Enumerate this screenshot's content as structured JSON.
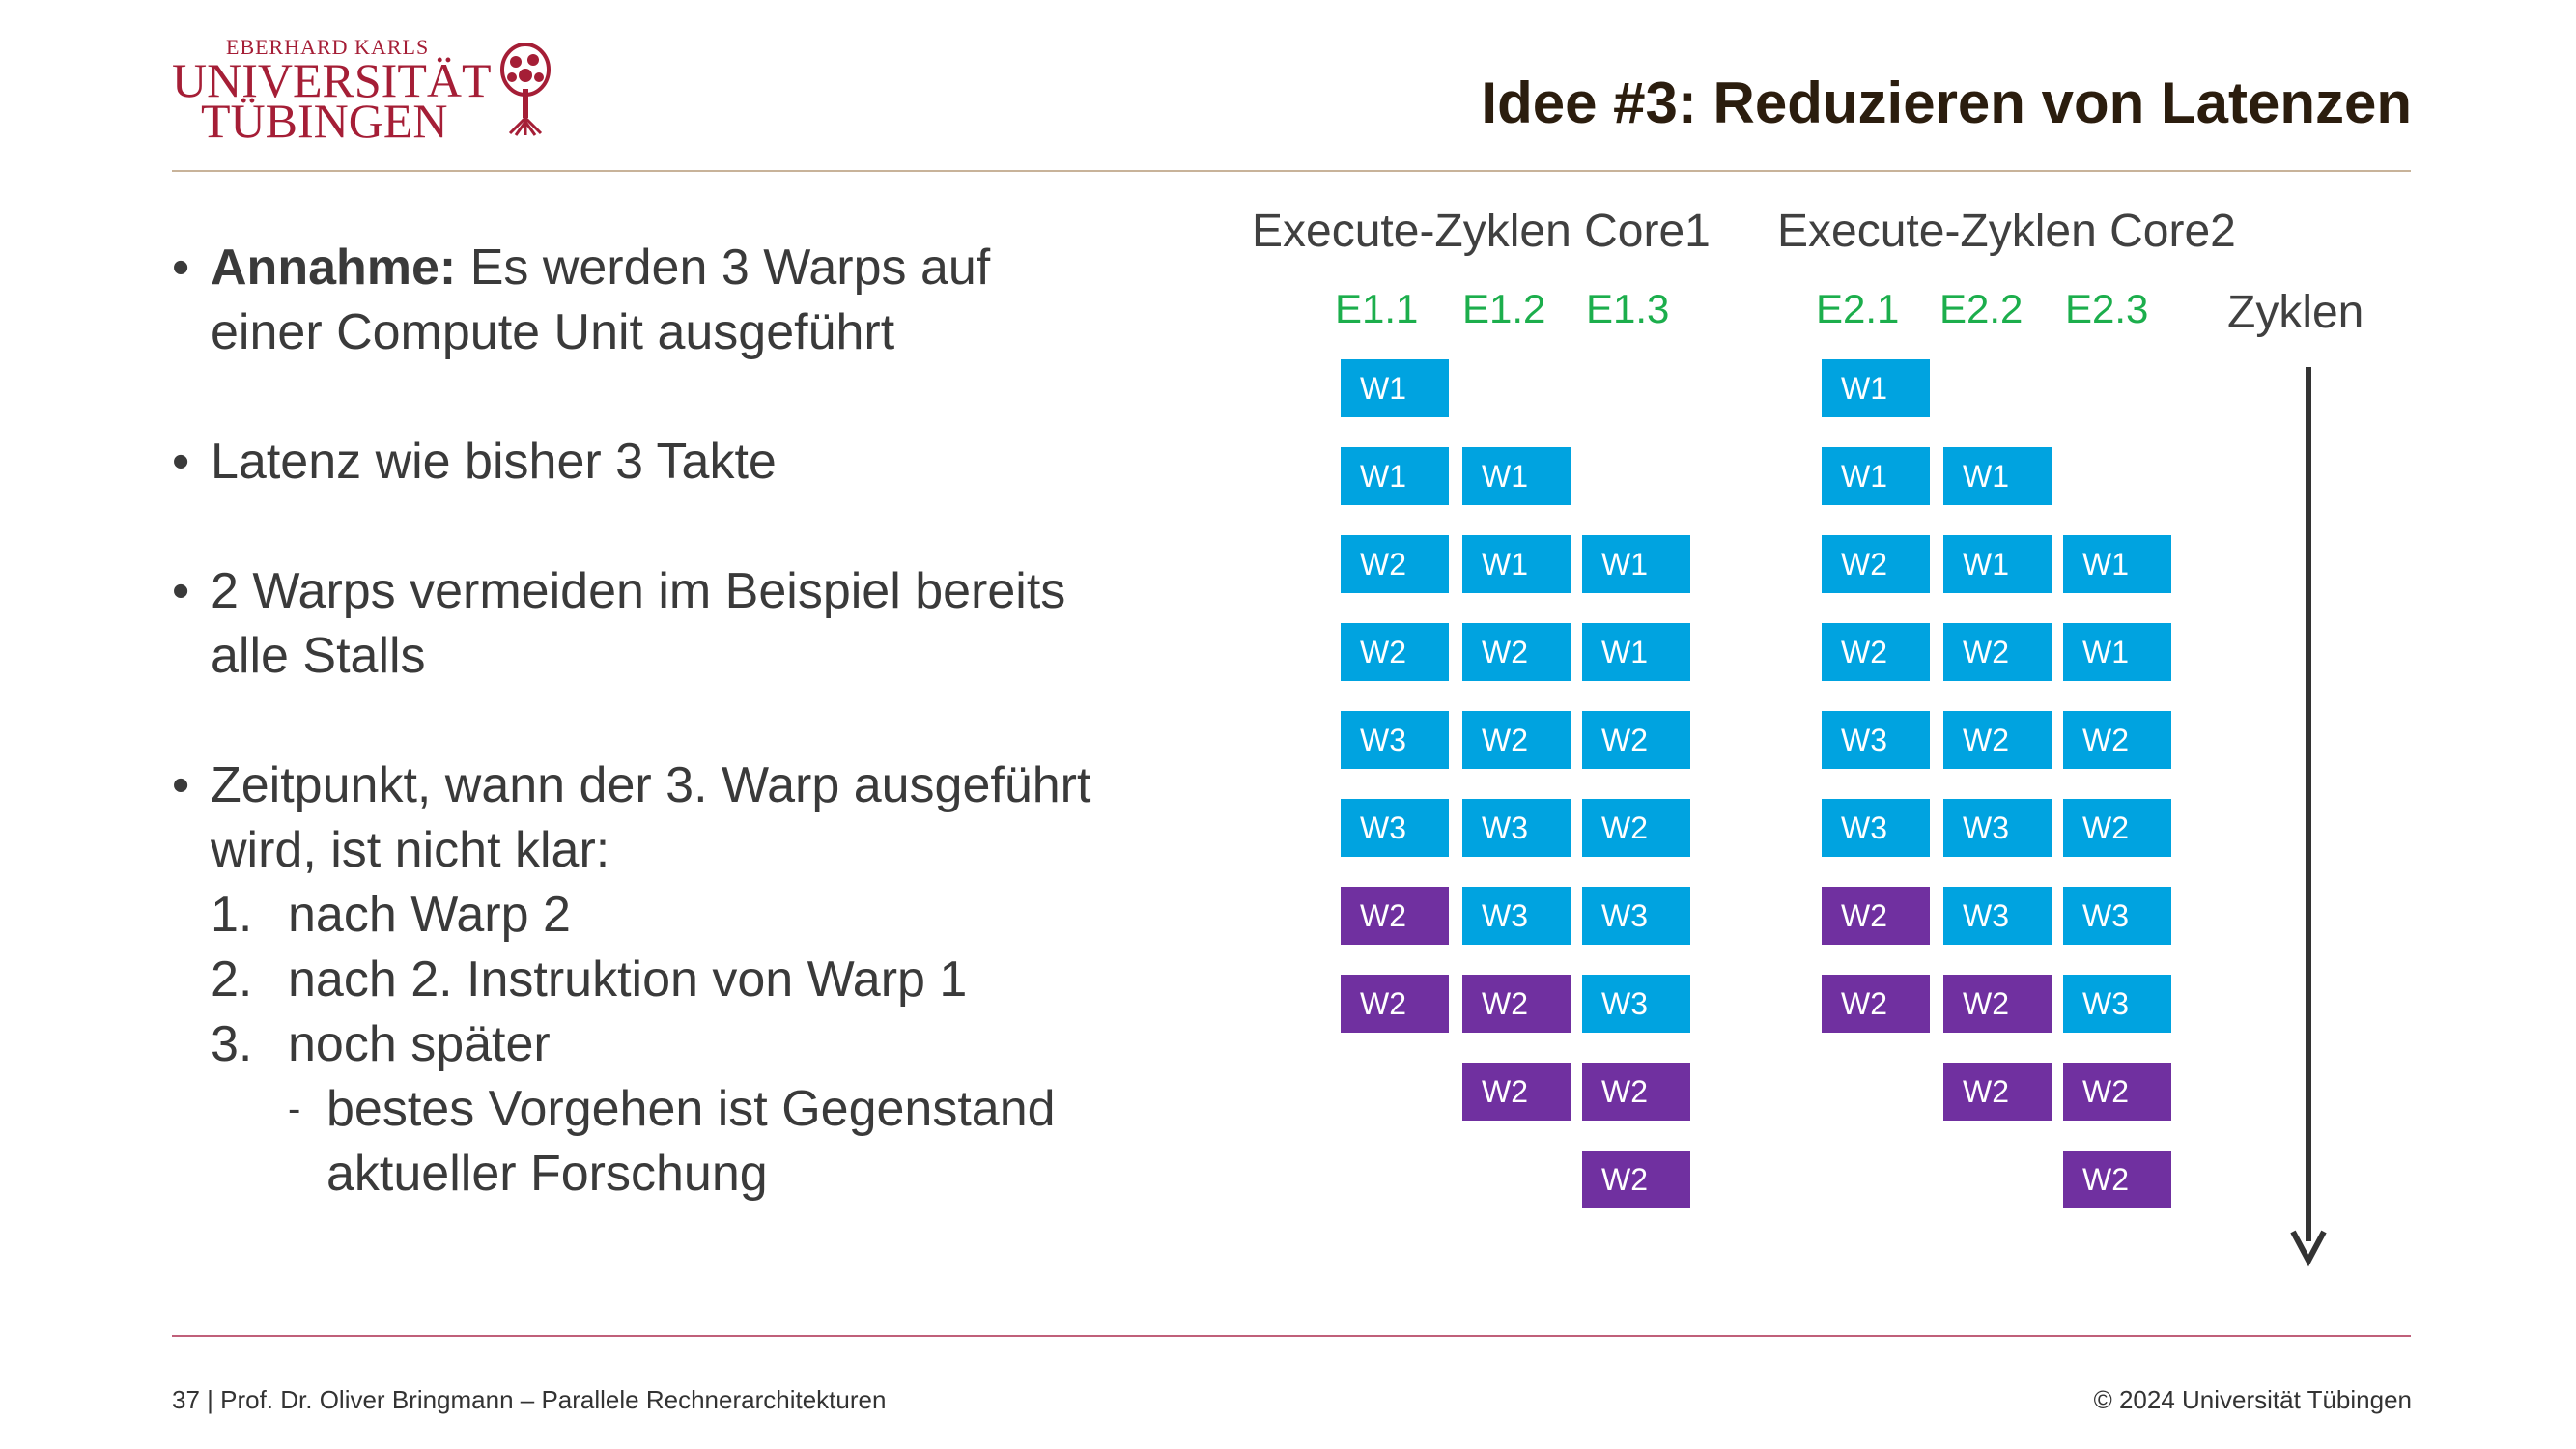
{
  "header": {
    "logo_line1": "EBERHARD KARLS",
    "logo_line2": "UNIVERSITÄT",
    "logo_line3": "TÜBINGEN",
    "title": "Idee #3: Reduzieren von Latenzen"
  },
  "bullets": {
    "b1_bold": "Annahme:",
    "b1_rest": " Es werden 3 Warps auf",
    "b1_line2": "einer Compute Unit ausgeführt",
    "b2": "Latenz wie bisher 3 Takte",
    "b3_line1": "2 Warps vermeiden im Beispiel bereits",
    "b3_line2": "alle Stalls",
    "b4_line1": "Zeitpunkt, wann der 3. Warp ausgeführt",
    "b4_line2": "wird, ist nicht klar:",
    "n1_num": "1.",
    "n1": "nach Warp 2",
    "n2_num": "2.",
    "n2": "nach 2. Instruktion von Warp 1",
    "n3_num": "3.",
    "n3": "noch später",
    "d_line1": "bestes Vorgehen ist Gegenstand",
    "d_line2": "aktueller Forschung"
  },
  "diagram": {
    "core1_header": "Execute-Zyklen Core1",
    "core2_header": "Execute-Zyklen Core2",
    "core1_stages": [
      "E1.1",
      "E1.2",
      "E1.3"
    ],
    "core2_stages": [
      "E2.1",
      "E2.2",
      "E2.3"
    ],
    "time_axis_label": "Zyklen",
    "colors": {
      "first_pass": "#00a3e0",
      "second_pass": "#7030a0",
      "stage_label": "#1cae4c"
    },
    "core1_cells": [
      [
        "W1",
        "W1",
        "W2",
        "W2",
        "W3",
        "W3",
        "W2",
        "W2",
        "",
        ""
      ],
      [
        "",
        "W1",
        "W1",
        "W2",
        "W2",
        "W3",
        "W3",
        "W2",
        "W2",
        ""
      ],
      [
        "",
        "",
        "W1",
        "W1",
        "W2",
        "W2",
        "W3",
        "W3",
        "W2",
        "W2"
      ]
    ],
    "core2_cells": [
      [
        "W1",
        "W1",
        "W2",
        "W2",
        "W3",
        "W3",
        "W2",
        "W2",
        "",
        ""
      ],
      [
        "",
        "W1",
        "W1",
        "W2",
        "W2",
        "W3",
        "W3",
        "W2",
        "W2",
        ""
      ],
      [
        "",
        "",
        "W1",
        "W1",
        "W2",
        "W2",
        "W3",
        "W3",
        "W2",
        "W2"
      ]
    ],
    "purple_from_row": [
      6,
      7,
      8
    ]
  },
  "footer": {
    "left": "37 | Prof. Dr. Oliver Bringmann – Parallele Rechnerarchitekturen",
    "right": "© 2024 Universität Tübingen"
  }
}
